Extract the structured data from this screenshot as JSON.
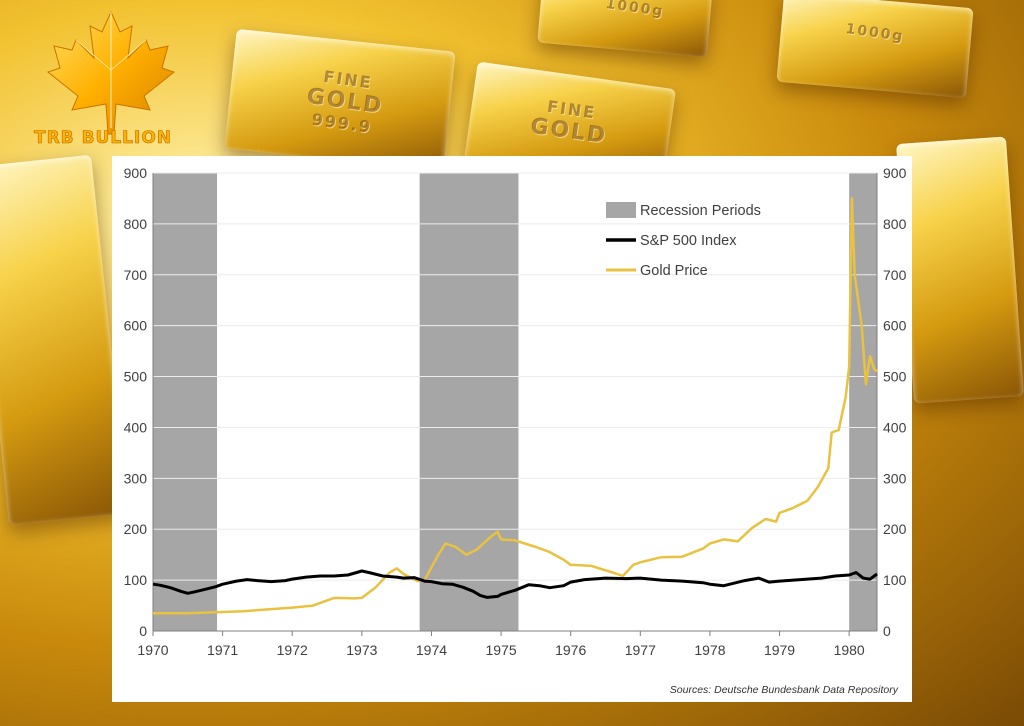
{
  "brand": {
    "name": "TRB BULLION",
    "logo_color": "#ffb000"
  },
  "background_bars": [
    {
      "line1": "FINE",
      "line2": "GOLD",
      "line3": "999.9"
    },
    {
      "line1": "FINE",
      "line2": "GOLD",
      "line3": ""
    },
    {
      "line1": "1000g",
      "line2": "",
      "line3": ""
    },
    {
      "line1": "1000g",
      "line2": "",
      "line3": ""
    }
  ],
  "source_note": "Sources: Deutsche Bundesbank Data Repository",
  "chart_data": {
    "type": "line",
    "x_range": [
      1970,
      1980.4
    ],
    "ylim": [
      0,
      900
    ],
    "ylim_right": [
      0,
      900
    ],
    "grid": true,
    "legend_position": "top-right",
    "y_ticks": [
      0,
      100,
      200,
      300,
      400,
      500,
      600,
      700,
      800,
      900
    ],
    "x_ticks": [
      "1970",
      "1971",
      "1972",
      "1973",
      "1974",
      "1975",
      "1976",
      "1977",
      "1978",
      "1979",
      "1980"
    ],
    "recessions": [
      {
        "start": 1970.0,
        "end": 1970.92
      },
      {
        "start": 1973.83,
        "end": 1975.25
      },
      {
        "start": 1980.0,
        "end": 1980.4
      }
    ],
    "legend": [
      {
        "label": "Recession Periods",
        "kind": "box",
        "color": "#a6a6a6"
      },
      {
        "label": "S&P 500 Index",
        "kind": "line",
        "color": "#000000"
      },
      {
        "label": "Gold Price",
        "kind": "line",
        "color": "#e8c240"
      }
    ],
    "series": [
      {
        "name": "S&P 500 Index",
        "color": "#000000",
        "points": [
          [
            1970.0,
            92
          ],
          [
            1970.1,
            90
          ],
          [
            1970.25,
            85
          ],
          [
            1970.4,
            78
          ],
          [
            1970.5,
            74
          ],
          [
            1970.6,
            77
          ],
          [
            1970.75,
            82
          ],
          [
            1970.9,
            87
          ],
          [
            1971.0,
            92
          ],
          [
            1971.2,
            98
          ],
          [
            1971.35,
            101
          ],
          [
            1971.5,
            99
          ],
          [
            1971.7,
            97
          ],
          [
            1971.9,
            99
          ],
          [
            1972.0,
            102
          ],
          [
            1972.2,
            106
          ],
          [
            1972.4,
            108
          ],
          [
            1972.6,
            108
          ],
          [
            1972.8,
            110
          ],
          [
            1972.95,
            116
          ],
          [
            1973.0,
            118
          ],
          [
            1973.1,
            115
          ],
          [
            1973.3,
            108
          ],
          [
            1973.5,
            106
          ],
          [
            1973.6,
            104
          ],
          [
            1973.75,
            105
          ],
          [
            1973.9,
            98
          ],
          [
            1974.0,
            97
          ],
          [
            1974.15,
            93
          ],
          [
            1974.3,
            92
          ],
          [
            1974.45,
            86
          ],
          [
            1974.6,
            78
          ],
          [
            1974.7,
            70
          ],
          [
            1974.8,
            66
          ],
          [
            1974.95,
            68
          ],
          [
            1975.0,
            72
          ],
          [
            1975.2,
            80
          ],
          [
            1975.4,
            91
          ],
          [
            1975.55,
            89
          ],
          [
            1975.7,
            85
          ],
          [
            1975.9,
            89
          ],
          [
            1976.0,
            96
          ],
          [
            1976.2,
            101
          ],
          [
            1976.5,
            104
          ],
          [
            1976.8,
            103
          ],
          [
            1977.0,
            104
          ],
          [
            1977.3,
            100
          ],
          [
            1977.6,
            98
          ],
          [
            1977.9,
            95
          ],
          [
            1978.0,
            92
          ],
          [
            1978.2,
            89
          ],
          [
            1978.5,
            99
          ],
          [
            1978.7,
            104
          ],
          [
            1978.85,
            96
          ],
          [
            1979.0,
            98
          ],
          [
            1979.3,
            101
          ],
          [
            1979.6,
            104
          ],
          [
            1979.8,
            108
          ],
          [
            1980.0,
            110
          ],
          [
            1980.1,
            115
          ],
          [
            1980.2,
            104
          ],
          [
            1980.3,
            102
          ],
          [
            1980.4,
            112
          ]
        ]
      },
      {
        "name": "Gold Price",
        "color": "#e8c240",
        "points": [
          [
            1970.0,
            35
          ],
          [
            1970.5,
            35
          ],
          [
            1970.9,
            37
          ],
          [
            1971.3,
            39
          ],
          [
            1971.7,
            43
          ],
          [
            1972.0,
            46
          ],
          [
            1972.3,
            50
          ],
          [
            1972.6,
            65
          ],
          [
            1972.9,
            64
          ],
          [
            1973.0,
            65
          ],
          [
            1973.2,
            86
          ],
          [
            1973.4,
            115
          ],
          [
            1973.5,
            123
          ],
          [
            1973.6,
            112
          ],
          [
            1973.8,
            98
          ],
          [
            1973.9,
            100
          ],
          [
            1974.0,
            125
          ],
          [
            1974.1,
            150
          ],
          [
            1974.2,
            172
          ],
          [
            1974.35,
            165
          ],
          [
            1974.5,
            150
          ],
          [
            1974.65,
            160
          ],
          [
            1974.85,
            185
          ],
          [
            1974.95,
            195
          ],
          [
            1975.0,
            180
          ],
          [
            1975.2,
            178
          ],
          [
            1975.5,
            165
          ],
          [
            1975.7,
            155
          ],
          [
            1975.9,
            140
          ],
          [
            1976.0,
            130
          ],
          [
            1976.3,
            128
          ],
          [
            1976.6,
            115
          ],
          [
            1976.75,
            108
          ],
          [
            1976.9,
            130
          ],
          [
            1977.0,
            135
          ],
          [
            1977.3,
            145
          ],
          [
            1977.6,
            146
          ],
          [
            1977.9,
            162
          ],
          [
            1978.0,
            172
          ],
          [
            1978.2,
            180
          ],
          [
            1978.4,
            176
          ],
          [
            1978.6,
            202
          ],
          [
            1978.8,
            220
          ],
          [
            1978.95,
            215
          ],
          [
            1979.0,
            232
          ],
          [
            1979.2,
            242
          ],
          [
            1979.4,
            256
          ],
          [
            1979.55,
            283
          ],
          [
            1979.7,
            320
          ],
          [
            1979.75,
            390
          ],
          [
            1979.85,
            395
          ],
          [
            1979.95,
            460
          ],
          [
            1980.0,
            520
          ],
          [
            1980.04,
            850
          ],
          [
            1980.08,
            700
          ],
          [
            1980.14,
            640
          ],
          [
            1980.18,
            600
          ],
          [
            1980.24,
            485
          ],
          [
            1980.3,
            540
          ],
          [
            1980.36,
            515
          ],
          [
            1980.4,
            510
          ]
        ]
      }
    ]
  }
}
